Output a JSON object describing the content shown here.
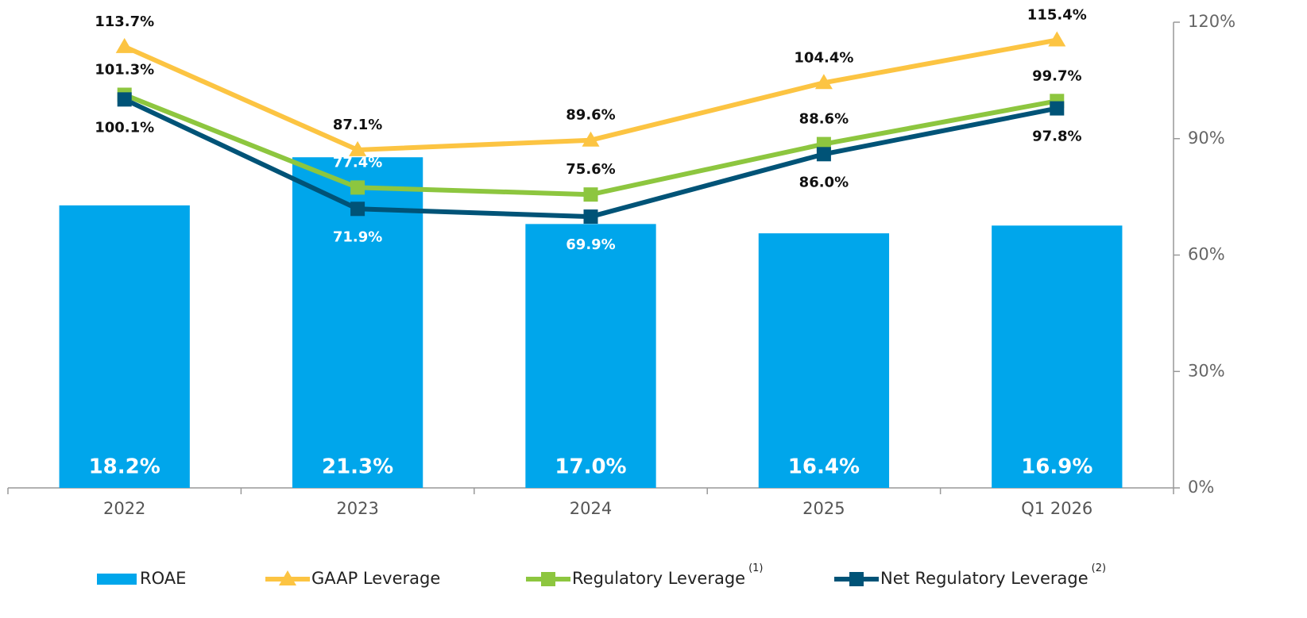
{
  "chart_data": {
    "type": "bar_line",
    "categories": [
      "2022",
      "2023",
      "2024",
      "2025",
      "Q1 2026"
    ],
    "ylim": [
      0,
      30
    ],
    "y2lim": [
      0,
      120
    ],
    "y2ticks": [
      {
        "value": 0,
        "label": "0%"
      },
      {
        "value": 30,
        "label": "30%"
      },
      {
        "value": 60,
        "label": "60%"
      },
      {
        "value": 90,
        "label": "90%"
      },
      {
        "value": 120,
        "label": "120%"
      }
    ],
    "series": [
      {
        "name": "ROAE",
        "type": "bar",
        "color": "#00a6eb",
        "values": [
          18.2,
          21.3,
          17.0,
          16.4,
          16.9
        ],
        "value_labels": [
          "18.2%",
          "21.3%",
          "17.0%",
          "16.4%",
          "16.9%"
        ]
      },
      {
        "name": "GAAP Leverage",
        "type": "line",
        "axis": "y2",
        "marker": "triangle",
        "color": "#fcc442",
        "values": [
          113.7,
          87.1,
          89.6,
          104.4,
          115.4
        ],
        "value_labels": [
          "113.7%",
          "87.1%",
          "89.6%",
          "104.4%",
          "115.4%"
        ]
      },
      {
        "name": "Regulatory Leverage",
        "footnote": "(1)",
        "type": "line",
        "axis": "y2",
        "marker": "square",
        "color": "#8dc63f",
        "values": [
          101.3,
          77.4,
          75.6,
          88.6,
          99.7
        ],
        "value_labels": [
          "101.3%",
          "77.4%",
          "75.6%",
          "88.6%",
          "99.7%"
        ]
      },
      {
        "name": "Net Regulatory Leverage",
        "footnote": "(2)",
        "type": "line",
        "axis": "y2",
        "marker": "square",
        "color": "#005377",
        "values": [
          100.1,
          71.9,
          69.9,
          86.0,
          97.8
        ],
        "value_labels": [
          "100.1%",
          "71.9%",
          "69.9%",
          "86.0%",
          "97.8%"
        ]
      }
    ]
  }
}
